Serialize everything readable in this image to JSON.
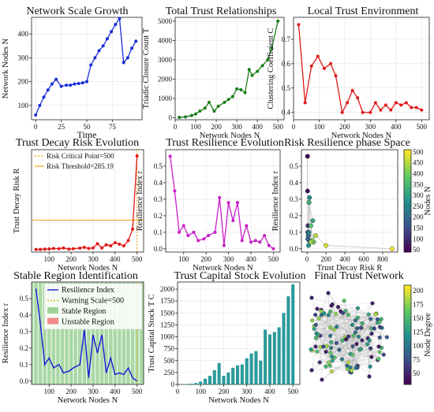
{
  "chart_data": [
    {
      "id": "p1",
      "type": "line",
      "title": "Network Scale Growth",
      "xlabel": "Time",
      "ylabel": "Network Nodes N",
      "xlim": [
        -4,
        104
      ],
      "ylim": [
        40,
        470
      ],
      "xticks": [
        0,
        25,
        50,
        75
      ],
      "yticks": [
        100,
        200,
        300,
        400
      ],
      "color": "#1c2fd8",
      "grid": true,
      "x": [
        0,
        4,
        8,
        12,
        16,
        20,
        25,
        30,
        34,
        38,
        42,
        46,
        50,
        54,
        58,
        62,
        66,
        70,
        74,
        78,
        82,
        86,
        90,
        94,
        98
      ],
      "y": [
        60,
        100,
        135,
        165,
        190,
        210,
        180,
        185,
        185,
        190,
        192,
        195,
        200,
        270,
        300,
        330,
        350,
        380,
        410,
        440,
        465,
        280,
        300,
        340,
        370
      ],
      "series_note": ""
    },
    {
      "id": "p2",
      "type": "line",
      "title": "Total Trust Relationships",
      "xlabel": "Network Nodes N",
      "ylabel": "Triadic Closure Count T",
      "xlim": [
        0,
        530
      ],
      "ylim": [
        -100,
        5200
      ],
      "xticks": [
        0,
        100,
        200,
        300,
        400,
        500
      ],
      "yticks": [
        0,
        1000,
        2000,
        3000,
        4000,
        5000
      ],
      "color": "#1a7f1a",
      "grid": true,
      "x": [
        20,
        50,
        80,
        100,
        120,
        145,
        165,
        190,
        210,
        240,
        260,
        280,
        300,
        320,
        340,
        360,
        375,
        400,
        425,
        450,
        470,
        500
      ],
      "y": [
        20,
        50,
        120,
        200,
        350,
        500,
        800,
        350,
        600,
        800,
        950,
        1100,
        1500,
        1450,
        1300,
        2500,
        2200,
        2400,
        2700,
        3000,
        3600,
        5000
      ]
    },
    {
      "id": "p3",
      "type": "line",
      "title": "Local Trust Environment",
      "xlabel": "Network Nodes N",
      "ylabel": "Clustering Coefficient C",
      "xlim": [
        0,
        530
      ],
      "ylim": [
        0.37,
        0.79
      ],
      "xticks": [
        0,
        100,
        200,
        300,
        400,
        500
      ],
      "yticks": [
        0.4,
        0.5,
        0.6,
        0.7
      ],
      "color": "#e01a1a",
      "grid": true,
      "x": [
        20,
        45,
        70,
        95,
        120,
        145,
        165,
        190,
        210,
        230,
        250,
        270,
        300,
        320,
        340,
        360,
        380,
        400,
        420,
        440,
        460,
        480,
        500
      ],
      "y": [
        0.76,
        0.44,
        0.59,
        0.63,
        0.58,
        0.6,
        0.55,
        0.4,
        0.44,
        0.49,
        0.46,
        0.4,
        0.4,
        0.44,
        0.41,
        0.43,
        0.41,
        0.44,
        0.43,
        0.44,
        0.42,
        0.42,
        0.41
      ]
    },
    {
      "id": "p4",
      "type": "line",
      "title": "Trust Decay Risk Evolution",
      "xlabel": "Network Nodes N",
      "ylabel": "Trust    Decay    Risk    R",
      "xlim": [
        20,
        530
      ],
      "ylim": [
        -20,
        960
      ],
      "xticks": [
        100,
        200,
        300,
        400,
        500
      ],
      "yticks": [],
      "color": "#e01a1a",
      "grid": true,
      "x": [
        40,
        60,
        80,
        100,
        120,
        145,
        165,
        190,
        210,
        240,
        260,
        280,
        300,
        320,
        340,
        360,
        380,
        400,
        420,
        440,
        460,
        480,
        500
      ],
      "y": [
        5,
        5,
        8,
        10,
        15,
        12,
        20,
        8,
        12,
        18,
        25,
        15,
        20,
        60,
        20,
        50,
        40,
        70,
        55,
        40,
        90,
        200,
        900
      ],
      "lines": [
        {
          "label": "Risk Critical Point=500",
          "orientation": "vertical",
          "value": 500,
          "color": "#f2a21a"
        },
        {
          "label": "Risk Threshold=285.19",
          "orientation": "horizontal",
          "value": 285.19,
          "color": "#f2a21a"
        }
      ]
    },
    {
      "id": "p5",
      "type": "line",
      "title": "Trust Resilience Evolution",
      "xlabel": "Network Nodes N",
      "ylabel": "Resilience    Index    r",
      "xlim": [
        20,
        530
      ],
      "ylim": [
        -0.02,
        0.6
      ],
      "xticks": [
        100,
        200,
        300,
        400,
        500
      ],
      "yticks": [
        0.0,
        0.1,
        0.2,
        0.3,
        0.4,
        0.5
      ],
      "color": "#c81ec8",
      "grid": true,
      "x": [
        40,
        60,
        80,
        100,
        120,
        145,
        165,
        190,
        210,
        240,
        260,
        280,
        300,
        320,
        340,
        360,
        380,
        400,
        420,
        440,
        460,
        480,
        500
      ],
      "y": [
        0.56,
        0.35,
        0.1,
        0.14,
        0.08,
        0.1,
        0.05,
        0.06,
        0.08,
        0.1,
        0.31,
        0.02,
        0.28,
        0.17,
        0.28,
        0.05,
        0.14,
        0.04,
        0.05,
        0.04,
        0.08,
        0.02,
        0.0
      ]
    },
    {
      "id": "p6",
      "type": "scatter",
      "title": "Risk Resilience phase Space",
      "xlabel": "Trust    Decay    Risk    R",
      "ylabel": "Resilience    Index    r",
      "xlim": [
        -60,
        960
      ],
      "ylim": [
        -0.02,
        0.6
      ],
      "xticks": [
        0,
        200,
        400,
        600,
        800
      ],
      "yticks": [
        0.0,
        0.1,
        0.2,
        0.3,
        0.4,
        0.5
      ],
      "colorbar": {
        "label": "Nodes    N",
        "ticks": [
          50,
          100,
          150,
          200,
          250,
          300,
          350,
          400,
          450,
          500
        ],
        "min": 40,
        "max": 510
      },
      "grid": true,
      "points": [
        {
          "x": 5,
          "y": 0.56,
          "n": 40
        },
        {
          "x": 5,
          "y": 0.35,
          "n": 60
        },
        {
          "x": 8,
          "y": 0.1,
          "n": 80
        },
        {
          "x": 10,
          "y": 0.14,
          "n": 100
        },
        {
          "x": 15,
          "y": 0.08,
          "n": 120
        },
        {
          "x": 12,
          "y": 0.1,
          "n": 145
        },
        {
          "x": 20,
          "y": 0.05,
          "n": 165
        },
        {
          "x": 8,
          "y": 0.06,
          "n": 190
        },
        {
          "x": 12,
          "y": 0.08,
          "n": 210
        },
        {
          "x": 18,
          "y": 0.1,
          "n": 240
        },
        {
          "x": 25,
          "y": 0.31,
          "n": 260
        },
        {
          "x": 15,
          "y": 0.02,
          "n": 280
        },
        {
          "x": 20,
          "y": 0.28,
          "n": 300
        },
        {
          "x": 60,
          "y": 0.17,
          "n": 320
        },
        {
          "x": 20,
          "y": 0.28,
          "n": 340
        },
        {
          "x": 50,
          "y": 0.05,
          "n": 360
        },
        {
          "x": 40,
          "y": 0.14,
          "n": 380
        },
        {
          "x": 70,
          "y": 0.04,
          "n": 400
        },
        {
          "x": 55,
          "y": 0.05,
          "n": 420
        },
        {
          "x": 40,
          "y": 0.04,
          "n": 440
        },
        {
          "x": 90,
          "y": 0.08,
          "n": 460
        },
        {
          "x": 200,
          "y": 0.02,
          "n": 480
        },
        {
          "x": 900,
          "y": 0.0,
          "n": 500
        }
      ]
    },
    {
      "id": "p7",
      "type": "line",
      "title": "Stable Region Identification",
      "xlabel": "Network Nodes N",
      "ylabel": "Resilience    Index    r",
      "xlim": [
        20,
        530
      ],
      "ylim": [
        -0.02,
        0.6
      ],
      "xticks": [
        100,
        200,
        300,
        400,
        500
      ],
      "yticks": [
        0.0,
        0.1,
        0.2,
        0.3,
        0.4,
        0.5
      ],
      "color": "#1a1ad8",
      "legend": [
        "Resilience Index",
        "Warning Scale=500",
        "Stable Region",
        "Unstable Region"
      ],
      "legend_colors": [
        "#1a1ad8",
        "#d8b21a",
        "#9ed29a",
        "#f08a8a"
      ],
      "x": [
        40,
        60,
        80,
        100,
        120,
        145,
        165,
        190,
        210,
        240,
        260,
        280,
        300,
        320,
        340,
        360,
        380,
        400,
        420,
        440,
        460,
        480,
        500
      ],
      "y": [
        0.56,
        0.35,
        0.1,
        0.14,
        0.08,
        0.1,
        0.05,
        0.06,
        0.08,
        0.1,
        0.31,
        0.02,
        0.28,
        0.17,
        0.28,
        0.05,
        0.14,
        0.04,
        0.05,
        0.04,
        0.08,
        0.02,
        0.0
      ],
      "warning_line": 500
    },
    {
      "id": "p8",
      "type": "bar",
      "title": "Trust Capital Stock Evolution",
      "xlabel": "Network Nodes N",
      "ylabel": "Trust Capital Stock T C",
      "xlim": [
        0,
        530
      ],
      "ylim": [
        0,
        2150
      ],
      "xticks": [
        0,
        100,
        200,
        300,
        400,
        500
      ],
      "yticks": [
        0,
        250,
        500,
        750,
        1000,
        1250,
        1500,
        1750,
        2000
      ],
      "color": "#2c9a9a",
      "grid": true,
      "x": [
        20,
        40,
        60,
        80,
        100,
        120,
        140,
        160,
        180,
        200,
        220,
        240,
        260,
        280,
        300,
        320,
        340,
        360,
        380,
        400,
        420,
        440,
        460,
        480,
        500
      ],
      "y": [
        5,
        8,
        15,
        30,
        60,
        120,
        180,
        300,
        450,
        180,
        250,
        350,
        400,
        420,
        550,
        650,
        700,
        500,
        1150,
        1050,
        1100,
        1200,
        1500,
        1850,
        2100
      ]
    },
    {
      "id": "p9",
      "type": "network",
      "title": "Final Trust Network",
      "colorbar": {
        "label": "Node    Degree",
        "ticks": [
          50,
          75,
          100,
          125,
          150,
          175,
          200
        ],
        "min": 30,
        "max": 210
      }
    }
  ]
}
